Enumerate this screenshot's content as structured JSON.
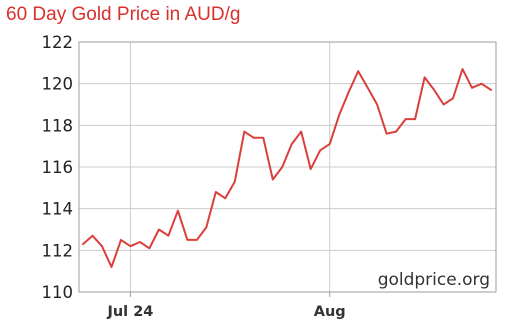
{
  "title": "60 Day Gold Price in AUD/g",
  "colors": {
    "title": "#d9302c",
    "line": "#d9403a",
    "grid": "#cccccc",
    "frame": "#9e9e9e"
  },
  "chart_data": {
    "type": "line",
    "title": "60 Day Gold Price in AUD/g",
    "xlabel": "",
    "ylabel": "",
    "ylim": [
      110,
      122
    ],
    "yticks": [
      110,
      112,
      114,
      116,
      118,
      120,
      122
    ],
    "x_tick_labels": [
      {
        "label": "Jul 24",
        "index": 5
      },
      {
        "label": "Aug",
        "index": 26
      }
    ],
    "grid": true,
    "annotation": "goldprice.org",
    "series": [
      {
        "values": [
          112.3,
          112.7,
          112.2,
          111.2,
          112.5,
          112.2,
          112.4,
          112.1,
          113.0,
          112.7,
          113.9,
          112.5,
          112.5,
          113.1,
          114.8,
          114.5,
          115.3,
          117.7,
          117.4,
          117.4,
          115.4,
          116.0,
          117.1,
          117.7,
          115.9,
          116.8,
          117.1,
          118.5,
          119.6,
          120.6,
          119.8,
          119.0,
          117.6,
          117.7,
          118.3,
          118.3,
          120.3,
          119.7,
          119.0,
          119.3,
          120.7,
          119.8,
          120.0,
          119.7
        ]
      }
    ]
  }
}
